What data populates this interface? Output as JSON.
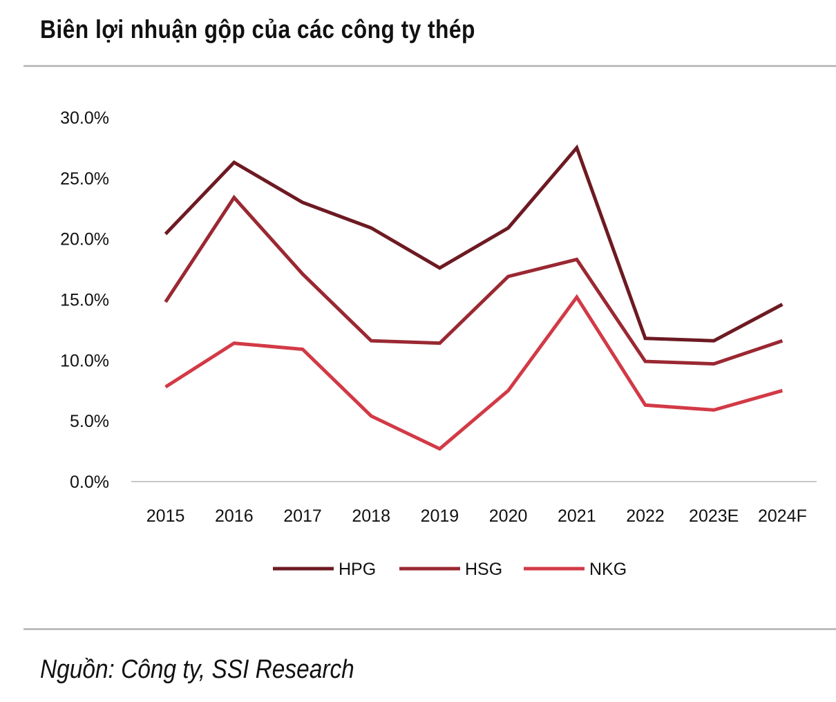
{
  "page": {
    "title": "Biên lợi nhuận gộp của các công ty thép",
    "source": "Nguồn: Công ty, SSI Research"
  },
  "chart_data": {
    "type": "line",
    "title": "Biên lợi nhuận gộp của các công ty thép",
    "xlabel": "",
    "ylabel": "",
    "categories": [
      "2015",
      "2016",
      "2017",
      "2018",
      "2019",
      "2020",
      "2021",
      "2022",
      "2023E",
      "2024F"
    ],
    "y_ticks": [
      0,
      5,
      10,
      15,
      20,
      25,
      30
    ],
    "y_tick_labels": [
      "0.0%",
      "5.0%",
      "10.0%",
      "15.0%",
      "20.0%",
      "25.0%",
      "30.0%"
    ],
    "ylim": [
      0,
      30
    ],
    "unit": "%",
    "grid": false,
    "legend_position": "bottom",
    "series": [
      {
        "name": "HPG",
        "color": "#6d1a22",
        "values": [
          20.4,
          26.3,
          23.0,
          20.9,
          17.6,
          20.9,
          27.5,
          11.8,
          11.6,
          14.6
        ]
      },
      {
        "name": "HSG",
        "color": "#9a2832",
        "values": [
          14.8,
          23.4,
          17.1,
          11.6,
          11.4,
          16.9,
          18.3,
          9.9,
          9.7,
          11.6
        ]
      },
      {
        "name": "NKG",
        "color": "#d23a46",
        "values": [
          7.8,
          11.4,
          10.9,
          5.4,
          2.7,
          7.5,
          15.2,
          6.3,
          5.9,
          7.5
        ]
      }
    ]
  }
}
